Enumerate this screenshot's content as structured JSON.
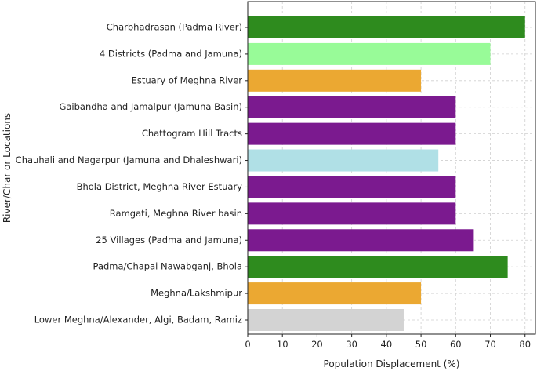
{
  "chart_data": {
    "type": "bar",
    "orientation": "horizontal",
    "xlabel": "Population Displacement (%)",
    "ylabel": "River/Char or Locations",
    "xlim": [
      0,
      83
    ],
    "xticks": [
      0,
      10,
      20,
      30,
      40,
      50,
      60,
      70,
      80
    ],
    "grid": true,
    "categories": [
      "Charbhadrasan (Padma River)",
      "4 Districts (Padma and Jamuna)",
      "Estuary of Meghna River",
      "Gaibandha and Jamalpur (Jamuna Basin)",
      "Chattogram Hill Tracts",
      "Chauhali and Nagarpur (Jamuna and Dhaleshwari)",
      "Bhola District, Meghna River Estuary",
      "Ramgati, Meghna River basin",
      "25 Villages (Padma and Jamuna)",
      "Padma/Chapai Nawabganj, Bhola",
      "Meghna/Lakshmipur",
      "Lower Meghna/Alexander, Algi, Badam, Ramiz"
    ],
    "values": [
      80,
      70,
      50,
      60,
      60,
      55,
      60,
      60,
      65,
      75,
      50,
      45
    ],
    "colors": [
      "#2e8b1e",
      "#98fb98",
      "#eba832",
      "#7b1a8f",
      "#7b1a8f",
      "#b0e0e6",
      "#7b1a8f",
      "#7b1a8f",
      "#7b1a8f",
      "#2e8b1e",
      "#eba832",
      "#d3d3d3"
    ]
  }
}
